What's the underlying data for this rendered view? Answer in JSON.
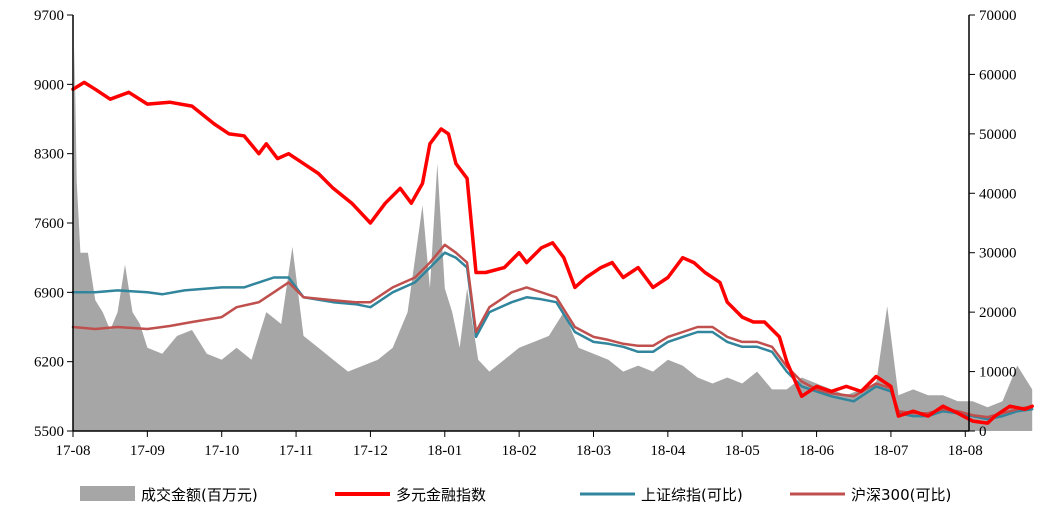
{
  "chart_data": {
    "type": "line",
    "x_ticks": [
      "17-08",
      "17-09",
      "17-10",
      "17-11",
      "17-12",
      "18-01",
      "18-02",
      "18-03",
      "18-04",
      "18-05",
      "18-06",
      "18-07",
      "18-08"
    ],
    "y_left": {
      "min": 5500,
      "max": 9700,
      "ticks": [
        "9700",
        "9000",
        "8300",
        "7600",
        "6900",
        "6200",
        "5500"
      ]
    },
    "y_right": {
      "min": 0,
      "max": 70000,
      "ticks": [
        "70000",
        "60000",
        "50000",
        "40000",
        "30000",
        "20000",
        "10000",
        "0"
      ]
    },
    "legend": [
      {
        "label": "成交金额(百万元)",
        "color": "#a6a6a6",
        "kind": "area"
      },
      {
        "label": "多元金融指数",
        "color": "#ff0000",
        "kind": "line"
      },
      {
        "label": "上证综指(可比)",
        "color": "#31859c",
        "kind": "line"
      },
      {
        "label": "沪深300(可比)",
        "color": "#c0504d",
        "kind": "line"
      }
    ],
    "series": [
      {
        "name": "多元金融指数",
        "axis": "left",
        "color": "#ff0000",
        "points": [
          [
            0,
            8950
          ],
          [
            0.15,
            9020
          ],
          [
            0.3,
            8950
          ],
          [
            0.5,
            8850
          ],
          [
            0.75,
            8920
          ],
          [
            1.0,
            8800
          ],
          [
            1.3,
            8820
          ],
          [
            1.6,
            8780
          ],
          [
            1.9,
            8600
          ],
          [
            2.1,
            8500
          ],
          [
            2.3,
            8480
          ],
          [
            2.5,
            8300
          ],
          [
            2.6,
            8400
          ],
          [
            2.75,
            8250
          ],
          [
            2.9,
            8300
          ],
          [
            3.1,
            8200
          ],
          [
            3.3,
            8100
          ],
          [
            3.5,
            7950
          ],
          [
            3.75,
            7800
          ],
          [
            4.0,
            7600
          ],
          [
            4.2,
            7800
          ],
          [
            4.4,
            7950
          ],
          [
            4.55,
            7800
          ],
          [
            4.7,
            8000
          ],
          [
            4.8,
            8400
          ],
          [
            4.95,
            8550
          ],
          [
            5.05,
            8500
          ],
          [
            5.15,
            8200
          ],
          [
            5.3,
            8050
          ],
          [
            5.42,
            7100
          ],
          [
            5.55,
            7100
          ],
          [
            5.8,
            7150
          ],
          [
            6.0,
            7300
          ],
          [
            6.1,
            7200
          ],
          [
            6.3,
            7350
          ],
          [
            6.45,
            7400
          ],
          [
            6.6,
            7250
          ],
          [
            6.75,
            6950
          ],
          [
            6.9,
            7050
          ],
          [
            7.1,
            7150
          ],
          [
            7.25,
            7200
          ],
          [
            7.4,
            7050
          ],
          [
            7.6,
            7150
          ],
          [
            7.8,
            6950
          ],
          [
            8.0,
            7050
          ],
          [
            8.2,
            7250
          ],
          [
            8.35,
            7200
          ],
          [
            8.5,
            7100
          ],
          [
            8.7,
            7000
          ],
          [
            8.8,
            6800
          ],
          [
            9.0,
            6650
          ],
          [
            9.15,
            6600
          ],
          [
            9.3,
            6600
          ],
          [
            9.5,
            6450
          ],
          [
            9.6,
            6200
          ],
          [
            9.8,
            5850
          ],
          [
            10.0,
            5950
          ],
          [
            10.2,
            5900
          ],
          [
            10.4,
            5950
          ],
          [
            10.6,
            5900
          ],
          [
            10.8,
            6050
          ],
          [
            11.0,
            5950
          ],
          [
            11.1,
            5650
          ],
          [
            11.3,
            5700
          ],
          [
            11.5,
            5650
          ],
          [
            11.7,
            5750
          ],
          [
            11.9,
            5680
          ],
          [
            12.1,
            5600
          ],
          [
            12.3,
            5580
          ],
          [
            12.4,
            5650
          ],
          [
            12.6,
            5750
          ],
          [
            12.8,
            5720
          ],
          [
            12.9,
            5750
          ]
        ]
      },
      {
        "name": "上证综指(可比)",
        "axis": "left",
        "color": "#31859c",
        "points": [
          [
            0,
            6900
          ],
          [
            0.3,
            6900
          ],
          [
            0.6,
            6920
          ],
          [
            1.0,
            6900
          ],
          [
            1.2,
            6880
          ],
          [
            1.5,
            6920
          ],
          [
            2.0,
            6950
          ],
          [
            2.3,
            6950
          ],
          [
            2.5,
            7000
          ],
          [
            2.7,
            7050
          ],
          [
            2.9,
            7050
          ],
          [
            3.1,
            6850
          ],
          [
            3.5,
            6800
          ],
          [
            3.8,
            6780
          ],
          [
            4.0,
            6750
          ],
          [
            4.3,
            6900
          ],
          [
            4.6,
            7000
          ],
          [
            4.8,
            7150
          ],
          [
            5.0,
            7300
          ],
          [
            5.15,
            7250
          ],
          [
            5.3,
            7150
          ],
          [
            5.42,
            6450
          ],
          [
            5.6,
            6700
          ],
          [
            5.9,
            6800
          ],
          [
            6.1,
            6850
          ],
          [
            6.3,
            6830
          ],
          [
            6.5,
            6800
          ],
          [
            6.75,
            6500
          ],
          [
            7.0,
            6400
          ],
          [
            7.2,
            6380
          ],
          [
            7.4,
            6350
          ],
          [
            7.6,
            6300
          ],
          [
            7.8,
            6300
          ],
          [
            8.0,
            6400
          ],
          [
            8.2,
            6450
          ],
          [
            8.4,
            6500
          ],
          [
            8.6,
            6500
          ],
          [
            8.8,
            6400
          ],
          [
            9.0,
            6350
          ],
          [
            9.2,
            6350
          ],
          [
            9.4,
            6300
          ],
          [
            9.6,
            6100
          ],
          [
            9.8,
            5950
          ],
          [
            10.0,
            5900
          ],
          [
            10.2,
            5850
          ],
          [
            10.5,
            5800
          ],
          [
            10.8,
            5950
          ],
          [
            11.0,
            5900
          ],
          [
            11.1,
            5680
          ],
          [
            11.3,
            5650
          ],
          [
            11.5,
            5650
          ],
          [
            11.7,
            5700
          ],
          [
            11.9,
            5680
          ],
          [
            12.1,
            5650
          ],
          [
            12.3,
            5620
          ],
          [
            12.5,
            5650
          ],
          [
            12.7,
            5700
          ],
          [
            12.9,
            5720
          ]
        ]
      },
      {
        "name": "沪深300(可比)",
        "axis": "left",
        "color": "#c0504d",
        "points": [
          [
            0,
            6550
          ],
          [
            0.3,
            6530
          ],
          [
            0.6,
            6550
          ],
          [
            1.0,
            6530
          ],
          [
            1.3,
            6560
          ],
          [
            1.6,
            6600
          ],
          [
            2.0,
            6650
          ],
          [
            2.2,
            6750
          ],
          [
            2.5,
            6800
          ],
          [
            2.7,
            6900
          ],
          [
            2.9,
            7000
          ],
          [
            3.1,
            6850
          ],
          [
            3.5,
            6820
          ],
          [
            3.8,
            6800
          ],
          [
            4.0,
            6800
          ],
          [
            4.3,
            6950
          ],
          [
            4.6,
            7050
          ],
          [
            4.8,
            7200
          ],
          [
            5.0,
            7380
          ],
          [
            5.15,
            7300
          ],
          [
            5.3,
            7200
          ],
          [
            5.42,
            6500
          ],
          [
            5.6,
            6750
          ],
          [
            5.9,
            6900
          ],
          [
            6.1,
            6950
          ],
          [
            6.3,
            6900
          ],
          [
            6.5,
            6850
          ],
          [
            6.75,
            6550
          ],
          [
            7.0,
            6450
          ],
          [
            7.2,
            6420
          ],
          [
            7.4,
            6380
          ],
          [
            7.6,
            6360
          ],
          [
            7.8,
            6360
          ],
          [
            8.0,
            6450
          ],
          [
            8.2,
            6500
          ],
          [
            8.4,
            6550
          ],
          [
            8.6,
            6550
          ],
          [
            8.8,
            6450
          ],
          [
            9.0,
            6400
          ],
          [
            9.2,
            6400
          ],
          [
            9.4,
            6350
          ],
          [
            9.6,
            6150
          ],
          [
            9.8,
            6000
          ],
          [
            10.0,
            5920
          ],
          [
            10.2,
            5880
          ],
          [
            10.5,
            5850
          ],
          [
            10.8,
            5980
          ],
          [
            11.0,
            5930
          ],
          [
            11.1,
            5700
          ],
          [
            11.3,
            5680
          ],
          [
            11.5,
            5680
          ],
          [
            11.7,
            5720
          ],
          [
            11.9,
            5700
          ],
          [
            12.1,
            5660
          ],
          [
            12.3,
            5640
          ],
          [
            12.5,
            5680
          ],
          [
            12.7,
            5720
          ],
          [
            12.9,
            5750
          ]
        ]
      },
      {
        "name": "成交金额(百万元)",
        "axis": "right",
        "color": "#a6a6a6",
        "kind": "area",
        "points": [
          [
            0,
            25000
          ],
          [
            0.02,
            65000
          ],
          [
            0.05,
            42000
          ],
          [
            0.1,
            30000
          ],
          [
            0.2,
            30000
          ],
          [
            0.3,
            22000
          ],
          [
            0.4,
            20000
          ],
          [
            0.5,
            17000
          ],
          [
            0.6,
            20000
          ],
          [
            0.7,
            28000
          ],
          [
            0.8,
            20000
          ],
          [
            0.9,
            18000
          ],
          [
            1.0,
            14000
          ],
          [
            1.2,
            13000
          ],
          [
            1.4,
            16000
          ],
          [
            1.6,
            17000
          ],
          [
            1.8,
            13000
          ],
          [
            2.0,
            12000
          ],
          [
            2.2,
            14000
          ],
          [
            2.4,
            12000
          ],
          [
            2.6,
            20000
          ],
          [
            2.8,
            18000
          ],
          [
            2.95,
            31000
          ],
          [
            3.1,
            16000
          ],
          [
            3.3,
            14000
          ],
          [
            3.5,
            12000
          ],
          [
            3.7,
            10000
          ],
          [
            3.9,
            11000
          ],
          [
            4.1,
            12000
          ],
          [
            4.3,
            14000
          ],
          [
            4.5,
            20000
          ],
          [
            4.7,
            38000
          ],
          [
            4.8,
            24000
          ],
          [
            4.9,
            45000
          ],
          [
            5.0,
            24000
          ],
          [
            5.1,
            20000
          ],
          [
            5.2,
            14000
          ],
          [
            5.3,
            24000
          ],
          [
            5.45,
            12000
          ],
          [
            5.6,
            10000
          ],
          [
            5.8,
            12000
          ],
          [
            6.0,
            14000
          ],
          [
            6.2,
            15000
          ],
          [
            6.4,
            16000
          ],
          [
            6.6,
            20000
          ],
          [
            6.8,
            14000
          ],
          [
            7.0,
            13000
          ],
          [
            7.2,
            12000
          ],
          [
            7.4,
            10000
          ],
          [
            7.6,
            11000
          ],
          [
            7.8,
            10000
          ],
          [
            8.0,
            12000
          ],
          [
            8.2,
            11000
          ],
          [
            8.4,
            9000
          ],
          [
            8.6,
            8000
          ],
          [
            8.8,
            9000
          ],
          [
            9.0,
            8000
          ],
          [
            9.2,
            10000
          ],
          [
            9.4,
            7000
          ],
          [
            9.6,
            7000
          ],
          [
            9.8,
            9000
          ],
          [
            10.0,
            8000
          ],
          [
            10.2,
            7000
          ],
          [
            10.4,
            6000
          ],
          [
            10.6,
            7000
          ],
          [
            10.8,
            8000
          ],
          [
            10.95,
            21000
          ],
          [
            11.1,
            6000
          ],
          [
            11.3,
            7000
          ],
          [
            11.5,
            6000
          ],
          [
            11.7,
            6000
          ],
          [
            11.9,
            5000
          ],
          [
            12.1,
            5000
          ],
          [
            12.3,
            4000
          ],
          [
            12.5,
            5000
          ],
          [
            12.7,
            11000
          ],
          [
            12.9,
            7000
          ]
        ]
      }
    ]
  }
}
